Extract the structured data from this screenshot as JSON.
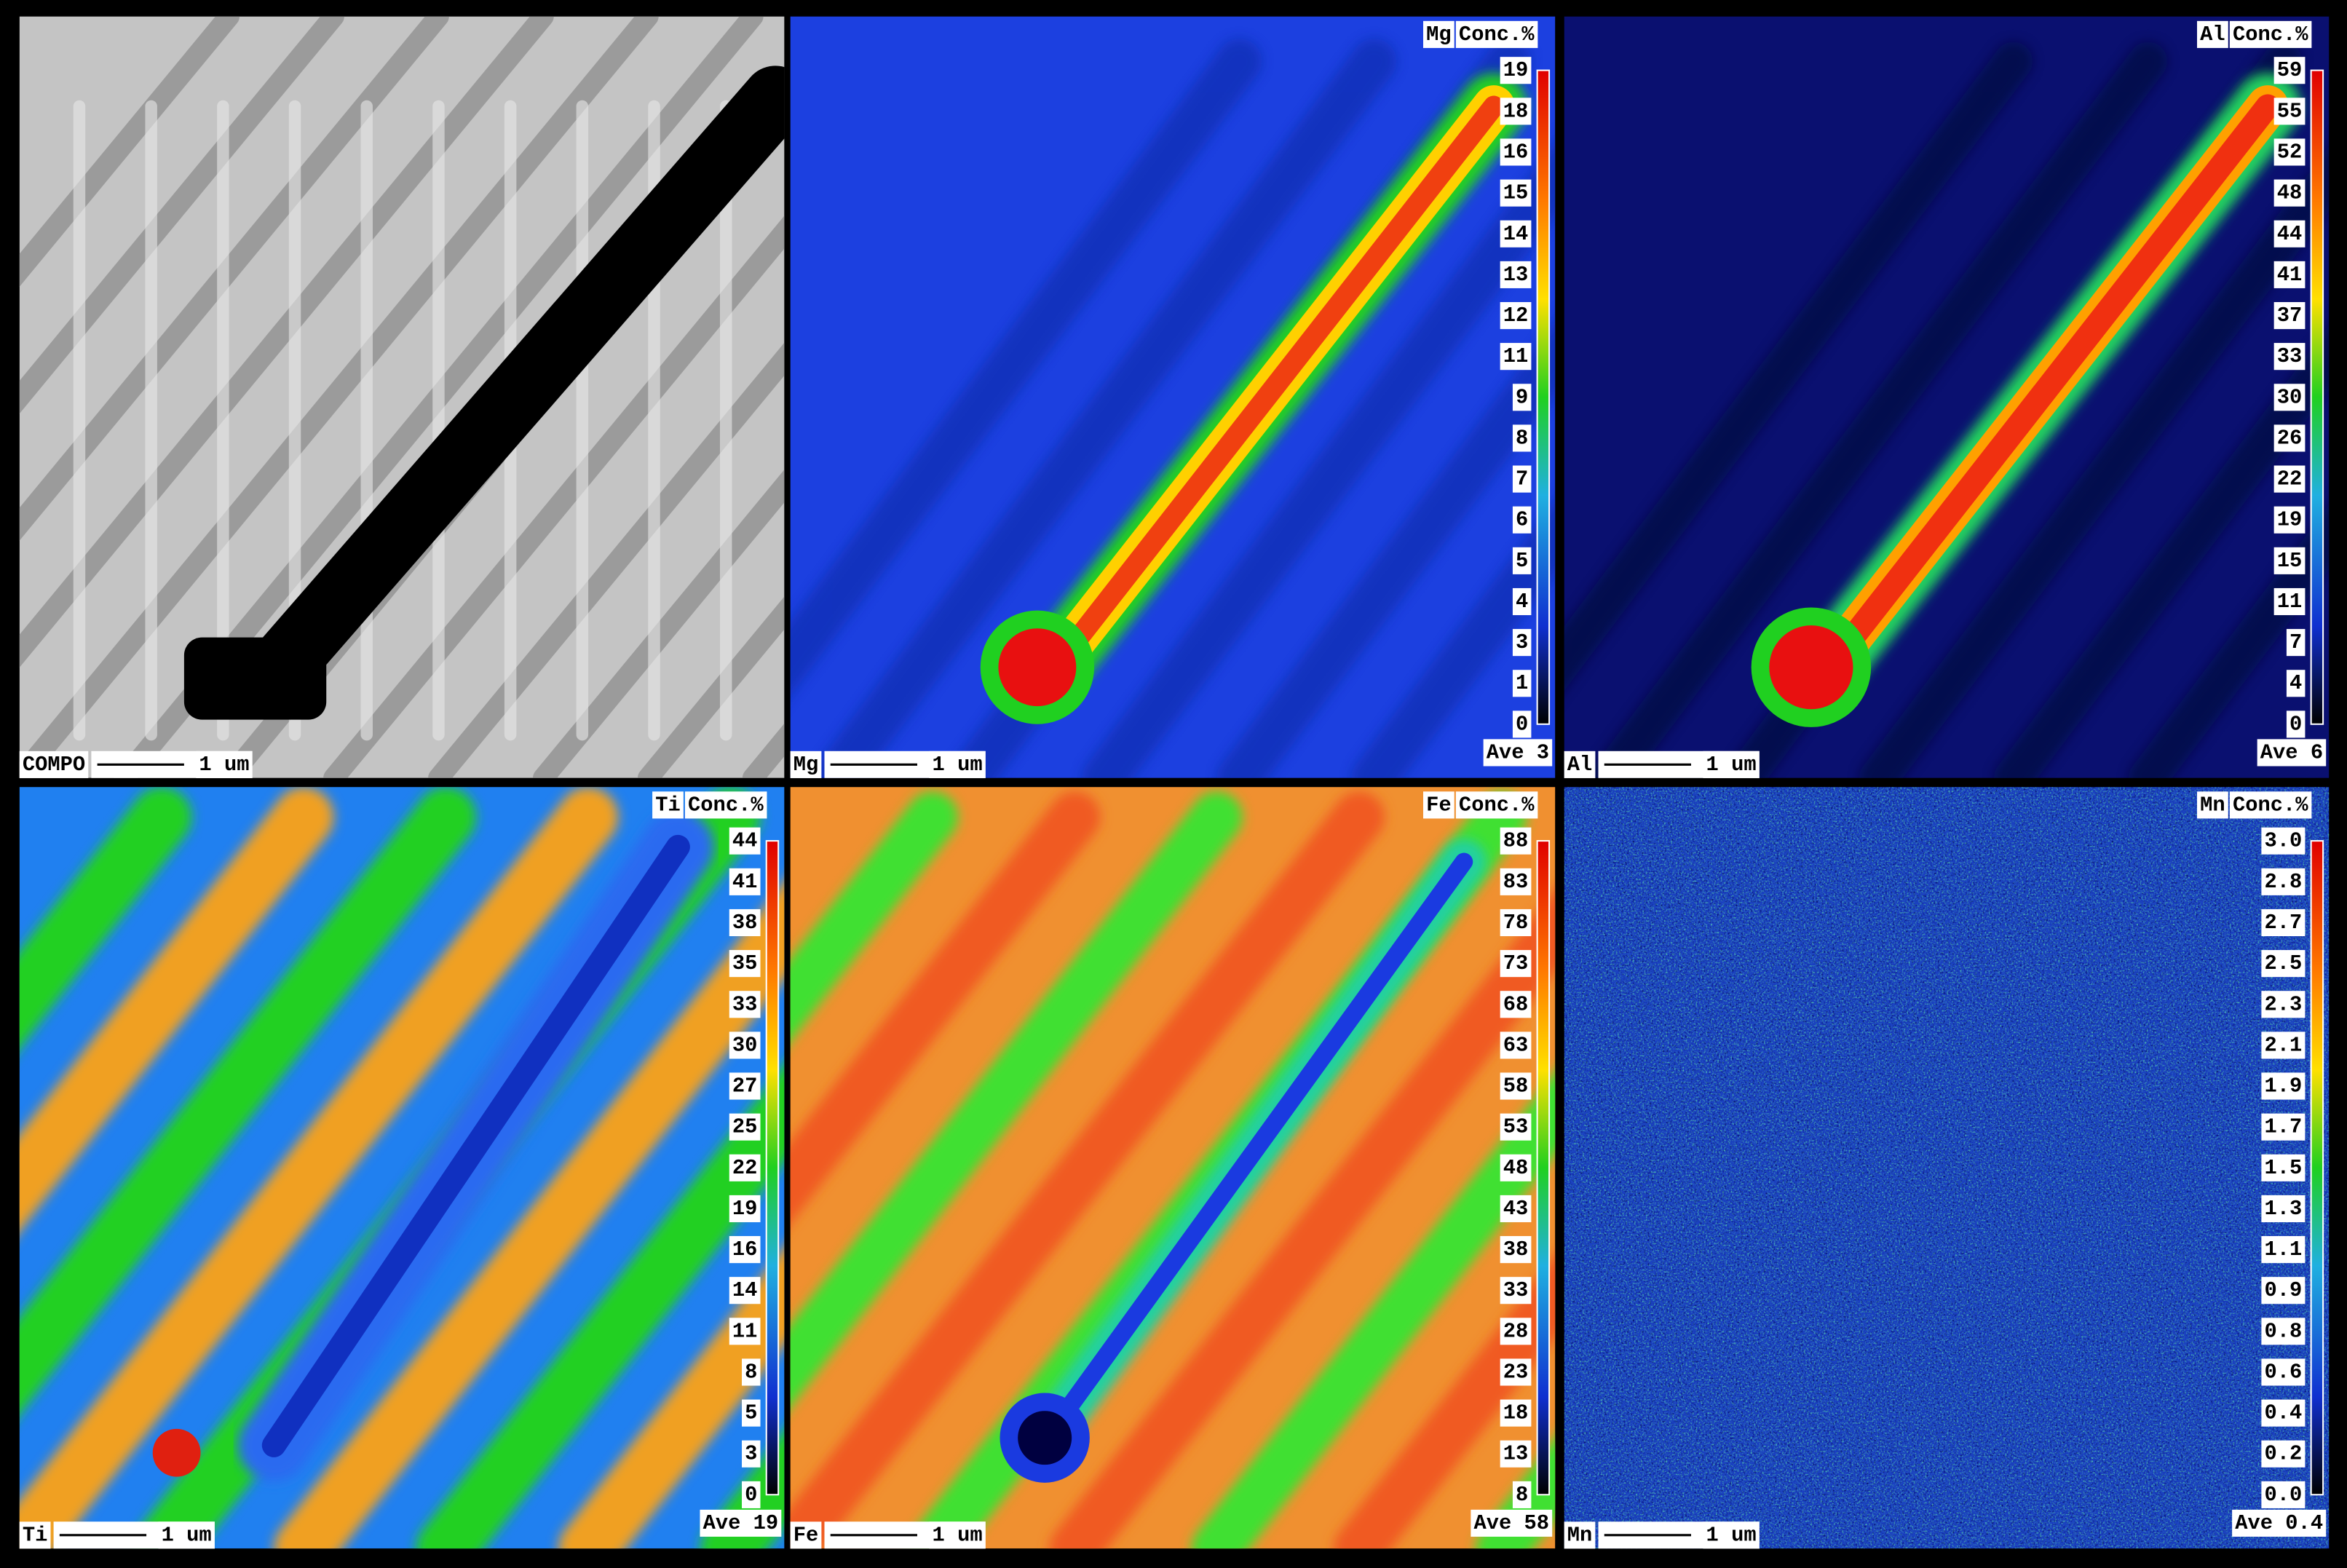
{
  "panels": [
    {
      "label": "COMPO",
      "scale": "1 um"
    },
    {
      "element": "Mg",
      "unit": "Conc.%",
      "label": "Mg",
      "scale": "1 um",
      "average": "Ave 3",
      "ticks": [
        "19",
        "18",
        "16",
        "15",
        "14",
        "13",
        "12",
        "11",
        "9",
        "8",
        "7",
        "6",
        "5",
        "4",
        "3",
        "1",
        "0"
      ]
    },
    {
      "element": "Al",
      "unit": "Conc.%",
      "label": "Al",
      "scale": "1 um",
      "average": "Ave 6",
      "ticks": [
        "59",
        "55",
        "52",
        "48",
        "44",
        "41",
        "37",
        "33",
        "30",
        "26",
        "22",
        "19",
        "15",
        "11",
        "7",
        "4",
        "0"
      ]
    },
    {
      "element": "Ti",
      "unit": "Conc.%",
      "label": "Ti",
      "scale": "1 um",
      "average": "Ave 19",
      "ticks": [
        "44",
        "41",
        "38",
        "35",
        "33",
        "30",
        "27",
        "25",
        "22",
        "19",
        "16",
        "14",
        "11",
        "8",
        "5",
        "3",
        "0"
      ]
    },
    {
      "element": "Fe",
      "unit": "Conc.%",
      "label": "Fe",
      "scale": "1 um",
      "average": "Ave 58",
      "ticks": [
        "88",
        "83",
        "78",
        "73",
        "68",
        "63",
        "58",
        "53",
        "48",
        "43",
        "38",
        "33",
        "28",
        "23",
        "18",
        "13",
        "8"
      ]
    },
    {
      "element": "Mn",
      "unit": "Conc.%",
      "label": "Mn",
      "scale": "1 um",
      "average": "Ave 0.4",
      "ticks": [
        "3.0",
        "2.8",
        "2.7",
        "2.5",
        "2.3",
        "2.1",
        "1.9",
        "1.7",
        "1.5",
        "1.3",
        "1.1",
        "0.9",
        "0.8",
        "0.6",
        "0.4",
        "0.2",
        "0.0"
      ]
    }
  ]
}
